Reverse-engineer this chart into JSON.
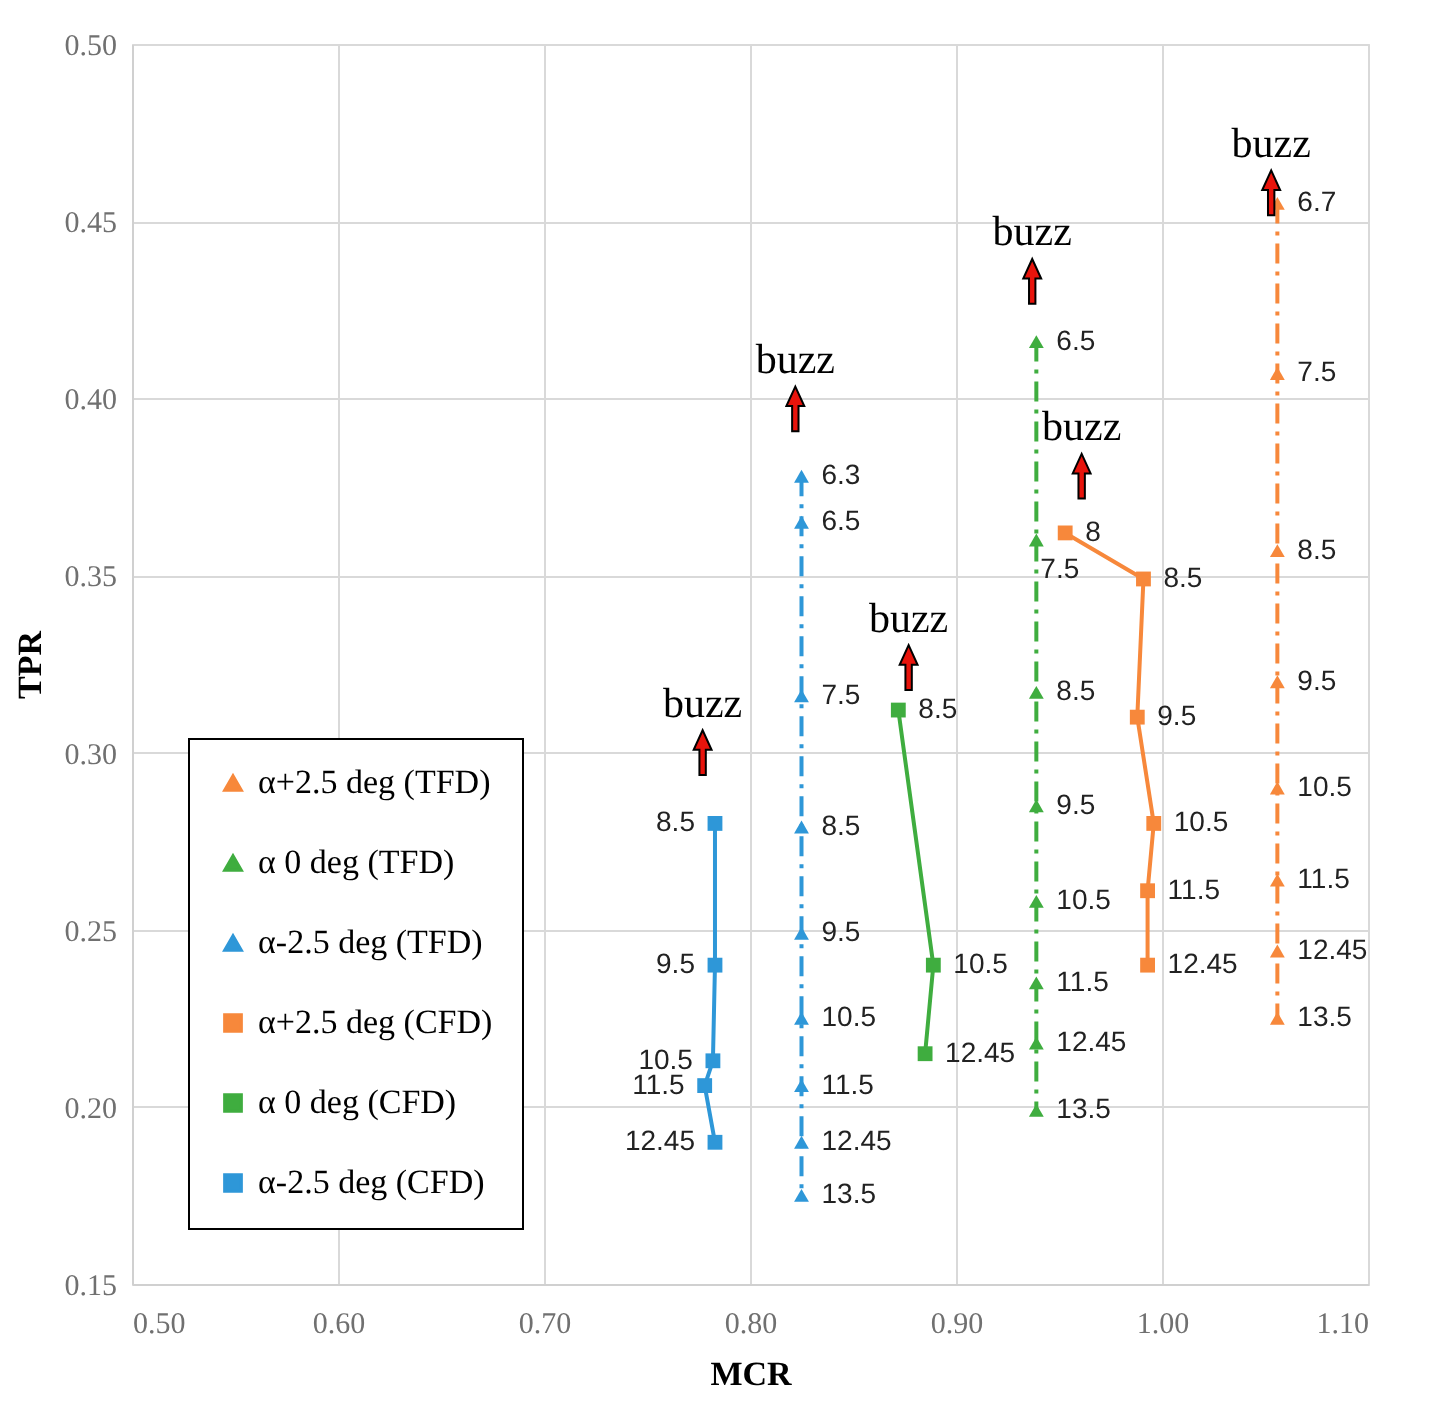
{
  "chart_data": {
    "type": "line",
    "xlabel": "MCR",
    "ylabel": "TPR",
    "xlim": [
      0.5,
      1.1
    ],
    "ylim": [
      0.15,
      0.5
    ],
    "xticks": [
      {
        "value": 0.5,
        "label": "0.50"
      },
      {
        "value": 0.6,
        "label": "0.60"
      },
      {
        "value": 0.7,
        "label": "0.70"
      },
      {
        "value": 0.8,
        "label": "0.80"
      },
      {
        "value": 0.9,
        "label": "0.90"
      },
      {
        "value": 1.0,
        "label": "1.00"
      },
      {
        "value": 1.1,
        "label": "1.10"
      }
    ],
    "yticks": [
      {
        "value": 0.15,
        "label": "0.15"
      },
      {
        "value": 0.2,
        "label": "0.20"
      },
      {
        "value": 0.25,
        "label": "0.25"
      },
      {
        "value": 0.3,
        "label": "0.30"
      },
      {
        "value": 0.35,
        "label": "0.35"
      },
      {
        "value": 0.4,
        "label": "0.40"
      },
      {
        "value": 0.45,
        "label": "0.45"
      },
      {
        "value": 0.5,
        "label": "0.50"
      }
    ],
    "grid": true,
    "legend": "bottom left",
    "series": [
      {
        "name": "α+2.5 deg (TFD)",
        "color": "#f7883b",
        "marker": "triangle",
        "line_style": "dashed",
        "x": [
          1.056,
          1.056,
          1.056,
          1.056,
          1.056,
          1.056,
          1.056,
          1.056
        ],
        "values": [
          0.455,
          0.407,
          0.357,
          0.32,
          0.29,
          0.264,
          0.244,
          0.225
        ]
      },
      {
        "name": "α 0 deg (TFD)",
        "color": "#3fad3f",
        "marker": "triangle",
        "line_style": "dashed",
        "x": [
          0.939,
          0.939,
          0.939,
          0.939,
          0.939,
          0.939,
          0.939,
          0.939
        ],
        "values": [
          0.416,
          0.36,
          0.317,
          0.285,
          0.258,
          0.235,
          0.218,
          0.199
        ]
      },
      {
        "name": "α-2.5 deg (TFD)",
        "color": "#2e97d8",
        "marker": "triangle",
        "line_style": "dashed",
        "x": [
          0.825,
          0.825,
          0.825,
          0.825,
          0.825,
          0.825,
          0.825,
          0.825,
          0.825
        ],
        "values": [
          0.378,
          0.365,
          0.316,
          0.279,
          0.249,
          0.225,
          0.206,
          0.19,
          0.175
        ]
      },
      {
        "name": "α+2.5 deg (CFD)",
        "color": "#f7883b",
        "marker": "square",
        "line_style": "solid",
        "x": [
          0.953,
          0.991,
          0.988,
          0.996,
          0.993,
          0.993
        ],
        "values": [
          0.362,
          0.349,
          0.31,
          0.28,
          0.261,
          0.24
        ]
      },
      {
        "name": "α 0 deg (CFD)",
        "color": "#3fad3f",
        "marker": "square",
        "line_style": "solid",
        "x": [
          0.872,
          0.889,
          0.885
        ],
        "values": [
          0.312,
          0.24,
          0.215
        ]
      },
      {
        "name": "α-2.5 deg (CFD)",
        "color": "#2e97d8",
        "marker": "square",
        "line_style": "solid",
        "x": [
          0.783,
          0.783,
          0.782,
          0.778,
          0.783
        ],
        "values": [
          0.28,
          0.24,
          0.213,
          0.206,
          0.19
        ]
      }
    ],
    "annotations": [
      {
        "text": "6.7",
        "x": 1.056,
        "y": 0.455
      },
      {
        "text": "7.5",
        "x": 1.056,
        "y": 0.407
      },
      {
        "text": "8.5",
        "x": 1.056,
        "y": 0.357
      },
      {
        "text": "9.5",
        "x": 1.056,
        "y": 0.32
      },
      {
        "text": "10.5",
        "x": 1.056,
        "y": 0.29
      },
      {
        "text": "11.5",
        "x": 1.056,
        "y": 0.264
      },
      {
        "text": "12.45",
        "x": 1.056,
        "y": 0.244
      },
      {
        "text": "13.5",
        "x": 1.056,
        "y": 0.225
      },
      {
        "text": "6.5",
        "x": 0.939,
        "y": 0.416
      },
      {
        "text": "7.5",
        "x": 0.939,
        "y": 0.36
      },
      {
        "text": "8.5",
        "x": 0.939,
        "y": 0.317
      },
      {
        "text": "9.5",
        "x": 0.939,
        "y": 0.285
      },
      {
        "text": "10.5",
        "x": 0.939,
        "y": 0.258
      },
      {
        "text": "11.5",
        "x": 0.939,
        "y": 0.235
      },
      {
        "text": "12.45",
        "x": 0.939,
        "y": 0.218
      },
      {
        "text": "13.5",
        "x": 0.939,
        "y": 0.199
      },
      {
        "text": "6.3",
        "x": 0.825,
        "y": 0.378
      },
      {
        "text": "6.5",
        "x": 0.825,
        "y": 0.365
      },
      {
        "text": "7.5",
        "x": 0.825,
        "y": 0.316
      },
      {
        "text": "8.5",
        "x": 0.825,
        "y": 0.279
      },
      {
        "text": "9.5",
        "x": 0.825,
        "y": 0.249
      },
      {
        "text": "10.5",
        "x": 0.825,
        "y": 0.225
      },
      {
        "text": "11.5",
        "x": 0.825,
        "y": 0.206
      },
      {
        "text": "12.45",
        "x": 0.825,
        "y": 0.19
      },
      {
        "text": "13.5",
        "x": 0.825,
        "y": 0.175
      },
      {
        "text": "8",
        "x": 0.953,
        "y": 0.362
      },
      {
        "text": "8.5",
        "x": 0.991,
        "y": 0.349
      },
      {
        "text": "9.5",
        "x": 0.988,
        "y": 0.31
      },
      {
        "text": "10.5",
        "x": 0.996,
        "y": 0.28
      },
      {
        "text": "11.5",
        "x": 0.993,
        "y": 0.261
      },
      {
        "text": "12.45",
        "x": 0.993,
        "y": 0.24
      },
      {
        "text": "8.5",
        "x": 0.872,
        "y": 0.312
      },
      {
        "text": "10.5",
        "x": 0.889,
        "y": 0.24
      },
      {
        "text": "12.45",
        "x": 0.885,
        "y": 0.215
      },
      {
        "text": "8.5",
        "x": 0.783,
        "y": 0.28
      },
      {
        "text": "9.5",
        "x": 0.783,
        "y": 0.24
      },
      {
        "text": "10.5",
        "x": 0.782,
        "y": 0.213
      },
      {
        "text": "11.5",
        "x": 0.778,
        "y": 0.206
      },
      {
        "text": "12.45",
        "x": 0.783,
        "y": 0.19
      },
      {
        "text": "buzz",
        "x": 0.777,
        "y": 0.3
      },
      {
        "text": "buzz",
        "x": 0.822,
        "y": 0.397
      },
      {
        "text": "buzz",
        "x": 0.877,
        "y": 0.324
      },
      {
        "text": "buzz",
        "x": 0.937,
        "y": 0.433
      },
      {
        "text": "buzz",
        "x": 0.961,
        "y": 0.378
      },
      {
        "text": "buzz",
        "x": 1.053,
        "y": 0.458
      }
    ]
  }
}
